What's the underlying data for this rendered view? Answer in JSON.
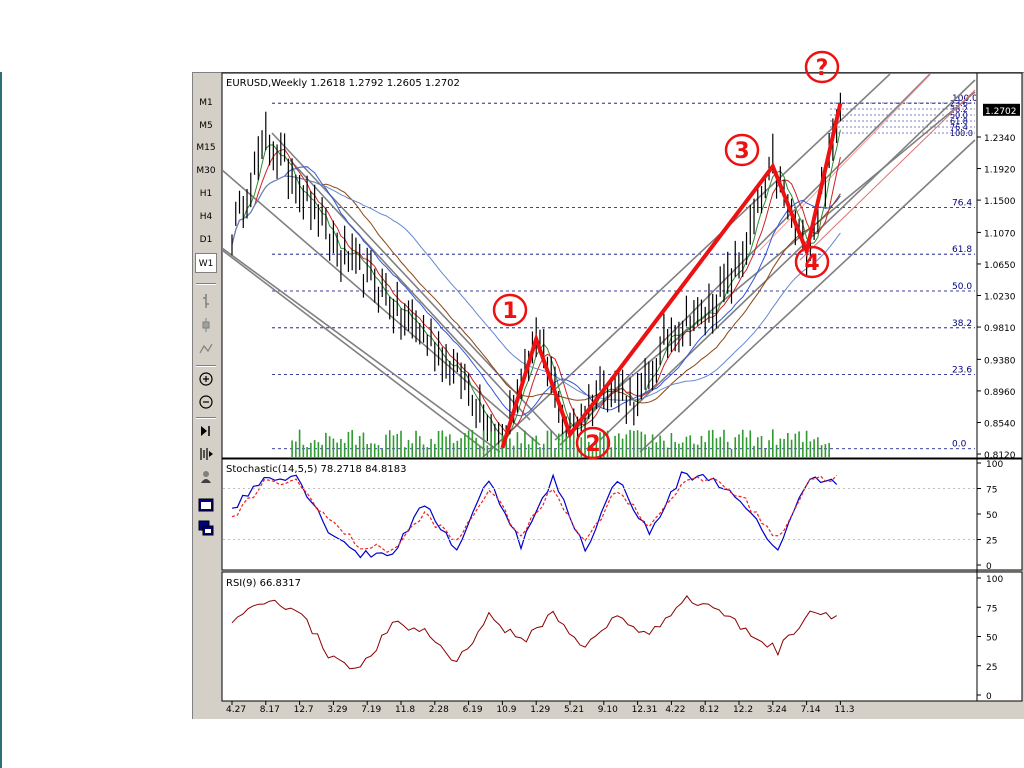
{
  "timeframes": [
    "M1",
    "M5",
    "M15",
    "M30",
    "H1",
    "H4",
    "D1",
    "W1"
  ],
  "active_timeframe": "W1",
  "main_panel": {
    "header": "EURUSD,Weekly  1.2618 1.2792 1.2605 1.2702",
    "price_ticks": [
      "1.2340",
      "1.1920",
      "1.1500",
      "1.1070",
      "1.0650",
      "1.0230",
      "0.9810",
      "0.9380",
      "0.8960",
      "0.8540",
      "0.8120"
    ],
    "current_price": "1.2702",
    "fib_levels": [
      {
        "label": "100.0",
        "price": 1.279
      },
      {
        "label": "76.4",
        "price": 1.14
      },
      {
        "label": "61.8",
        "price": 1.078
      },
      {
        "label": "50.0",
        "price": 1.029
      },
      {
        "label": "38.2",
        "price": 0.98
      },
      {
        "label": "23.6",
        "price": 0.918
      },
      {
        "label": "0.0",
        "price": 0.819
      }
    ],
    "fib_small_labels": [
      "23.6",
      "38.2",
      "50.0",
      "61.8",
      "76.4",
      "100.0"
    ],
    "wave_labels": [
      "1",
      "2",
      "3",
      "4",
      "?"
    ]
  },
  "stochastic_panel": {
    "header": "Stochastic(14,5,5)  78.2718  84.8183",
    "ticks": [
      "100",
      "75",
      "50",
      "25",
      "0"
    ]
  },
  "rsi_panel": {
    "header": "RSI(9)  66.8317",
    "ticks": [
      "100",
      "75",
      "50",
      "25",
      "0"
    ]
  },
  "date_ticks": [
    "4.27",
    "8.17",
    "12.7",
    "3.29",
    "7.19",
    "11.8",
    "2.28",
    "6.19",
    "10.9",
    "1.29",
    "5.21",
    "9.10",
    "12.31",
    "4.22",
    "8.12",
    "12.2",
    "3.24",
    "7.14",
    "11.3"
  ],
  "chart_data": [
    {
      "type": "line",
      "title": "EURUSD,Weekly",
      "ohlc_last": {
        "open": 1.2618,
        "high": 1.2792,
        "low": 1.2605,
        "close": 1.2702
      },
      "ylim": [
        0.805,
        1.29
      ],
      "x": [
        "4.27",
        "8.17",
        "12.7",
        "3.29",
        "7.19",
        "11.8",
        "2.28",
        "6.19",
        "10.9",
        "1.29",
        "5.21",
        "9.10",
        "12.31",
        "4.22",
        "8.12",
        "12.2",
        "3.24",
        "7.14",
        "11.3"
      ],
      "series": [
        {
          "values": [
            1.105,
            1.23,
            1.17,
            1.09,
            1.05,
            1.0,
            0.955,
            0.9,
            0.83,
            0.965,
            0.835,
            0.91,
            0.88,
            0.98,
            0.995,
            1.06,
            1.195,
            1.08,
            1.27
          ]
        }
      ],
      "wave_points": [
        {
          "x": "10.9",
          "y": 0.82
        },
        {
          "x": "1.29",
          "y": 0.965
        },
        {
          "x": "5.21",
          "y": 0.838
        },
        {
          "x": "3.24",
          "y": 1.195
        },
        {
          "x": "7.14",
          "y": 1.082
        },
        {
          "x": "11.3",
          "y": 1.279
        }
      ],
      "fib_retracement": [
        100.0,
        76.4,
        61.8,
        50.0,
        38.2,
        23.6,
        0.0
      ]
    },
    {
      "type": "line",
      "title": "Stochastic(14,5,5)",
      "last": {
        "main": 78.2718,
        "signal": 84.8183
      },
      "ylim": [
        0,
        100
      ],
      "series": [
        {
          "values": [
            55,
            85,
            88,
            35,
            10,
            12,
            60,
            15,
            85,
            20,
            85,
            15,
            85,
            30,
            88,
            85,
            55,
            15,
            88,
            78
          ]
        },
        {
          "values": [
            45,
            80,
            82,
            45,
            18,
            15,
            50,
            22,
            75,
            28,
            75,
            22,
            75,
            38,
            80,
            85,
            62,
            25,
            85,
            85
          ]
        }
      ]
    },
    {
      "type": "line",
      "title": "RSI(9)",
      "last": 66.8317,
      "ylim": [
        0,
        100
      ],
      "series": [
        {
          "values": [
            62,
            80,
            75,
            35,
            22,
            60,
            55,
            28,
            68,
            45,
            70,
            40,
            68,
            50,
            82,
            76,
            55,
            38,
            72,
            67
          ]
        }
      ]
    }
  ]
}
